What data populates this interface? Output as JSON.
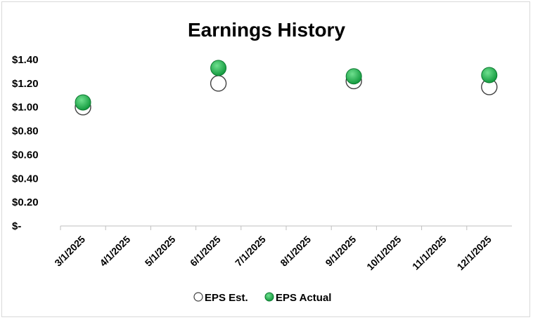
{
  "chart_data": {
    "type": "scatter",
    "title": "Earnings History",
    "xlabel": "",
    "ylabel": "",
    "x_ticks": [
      "3/1/2025",
      "4/1/2025",
      "5/1/2025",
      "6/1/2025",
      "7/1/2025",
      "8/1/2025",
      "9/1/2025",
      "10/1/2025",
      "11/1/2025",
      "12/1/2025"
    ],
    "y_ticks": [
      "$-",
      "$0.20",
      "$0.40",
      "$0.60",
      "$0.80",
      "$1.00",
      "$1.20",
      "$1.40"
    ],
    "ylim": [
      0,
      1.4
    ],
    "grid": false,
    "legend_position": "bottom",
    "series": [
      {
        "name": "EPS Est.",
        "marker": "hollow-circle",
        "color": "#ffffff",
        "stroke": "#404040",
        "points": [
          {
            "x": "3/1/2025",
            "y": 1.0
          },
          {
            "x": "6/1/2025",
            "y": 1.2
          },
          {
            "x": "9/1/2025",
            "y": 1.22
          },
          {
            "x": "12/1/2025",
            "y": 1.17
          }
        ]
      },
      {
        "name": "EPS Actual",
        "marker": "filled-circle",
        "color": "#1fae4b",
        "stroke": "#0e7a32",
        "points": [
          {
            "x": "3/1/2025",
            "y": 1.04
          },
          {
            "x": "6/1/2025",
            "y": 1.33
          },
          {
            "x": "9/1/2025",
            "y": 1.26
          },
          {
            "x": "12/1/2025",
            "y": 1.27
          }
        ]
      }
    ]
  }
}
